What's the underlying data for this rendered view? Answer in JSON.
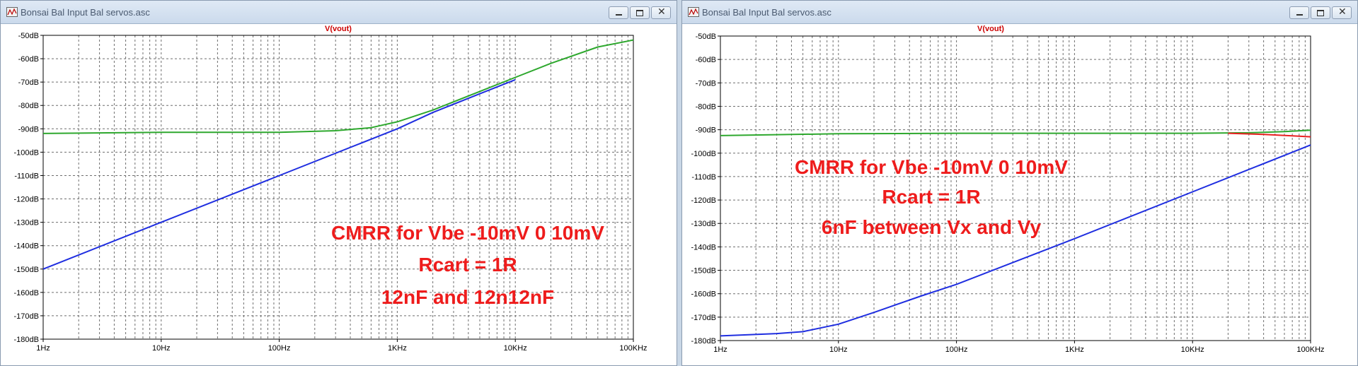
{
  "windows": [
    {
      "title": "Bonsai Bal Input Bal servos.asc",
      "plot_label": "V(vout)",
      "annotation": [
        "CMRR for Vbe -10mV 0 10mV",
        "Rcart = 1R",
        "12nF and 12n12nF"
      ]
    },
    {
      "title": "Bonsai Bal Input Bal servos.asc",
      "plot_label": "V(vout)",
      "annotation": [
        "CMRR for Vbe -10mV 0 10mV",
        "Rcart = 1R",
        "6nF between Vx and Vy"
      ]
    }
  ],
  "colors": {
    "series_blue": "#1f2ee0",
    "series_green": "#2ea82e",
    "series_red": "#e82020",
    "annotation": "#ee1c1c",
    "label_red": "#cc0000"
  },
  "chart_data": [
    {
      "type": "line",
      "x_scale": "log",
      "xlim": [
        1,
        100000
      ],
      "ylim": [
        -180,
        -50
      ],
      "x_ticks": [
        1,
        10,
        100,
        1000,
        10000,
        100000
      ],
      "x_tick_labels": [
        "1Hz",
        "10Hz",
        "100Hz",
        "1KHz",
        "10KHz",
        "100KHz"
      ],
      "y_tick_labels": [
        "-50dB",
        "-60dB",
        "-70dB",
        "-80dB",
        "-90dB",
        "-100dB",
        "-110dB",
        "-120dB",
        "-130dB",
        "-140dB",
        "-150dB",
        "-160dB",
        "-170dB",
        "-180dB"
      ],
      "grid": true,
      "series": [
        {
          "color": "#2ea82e",
          "x": [
            1,
            10,
            100,
            300,
            600,
            1000,
            2000,
            5000,
            10000,
            20000,
            50000,
            100000
          ],
          "y": [
            -92,
            -91.5,
            -91.5,
            -90.8,
            -89.5,
            -87,
            -82,
            -74,
            -68,
            -62,
            -55,
            -52
          ]
        },
        {
          "color": "#1f2ee0",
          "x": [
            1,
            10,
            100,
            1000,
            2000,
            5000,
            10000
          ],
          "y": [
            -150,
            -130,
            -110,
            -90,
            -83,
            -75,
            -69
          ]
        }
      ]
    },
    {
      "type": "line",
      "x_scale": "log",
      "xlim": [
        1,
        100000
      ],
      "ylim": [
        -180,
        -50
      ],
      "x_ticks": [
        1,
        10,
        100,
        1000,
        10000,
        100000
      ],
      "x_tick_labels": [
        "1Hz",
        "10Hz",
        "100Hz",
        "1KHz",
        "10KHz",
        "100KHz"
      ],
      "y_tick_labels": [
        "-50dB",
        "-60dB",
        "-70dB",
        "-80dB",
        "-90dB",
        "-100dB",
        "-110dB",
        "-120dB",
        "-130dB",
        "-140dB",
        "-150dB",
        "-160dB",
        "-170dB",
        "-180dB"
      ],
      "grid": true,
      "series": [
        {
          "color": "#2ea82e",
          "x": [
            1,
            10,
            100,
            1000,
            10000,
            30000,
            60000,
            100000
          ],
          "y": [
            -92.5,
            -91.7,
            -91.5,
            -91.5,
            -91.5,
            -91.3,
            -90.8,
            -90.2
          ]
        },
        {
          "color": "#e82020",
          "x": [
            20000,
            40000,
            70000,
            100000
          ],
          "y": [
            -91.5,
            -92,
            -92.6,
            -93
          ]
        },
        {
          "color": "#1f2ee0",
          "x": [
            1,
            3,
            5,
            10,
            20,
            50,
            100,
            1000,
            10000,
            100000
          ],
          "y": [
            -178,
            -177,
            -176.2,
            -173,
            -168,
            -161,
            -156,
            -136.5,
            -116.5,
            -96.5
          ]
        }
      ]
    }
  ]
}
